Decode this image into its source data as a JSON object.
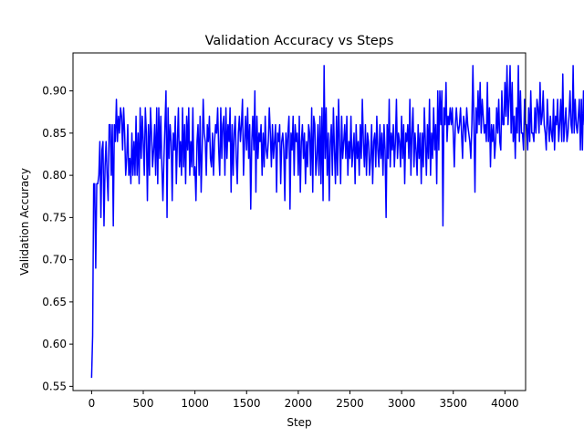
{
  "chart_data": {
    "type": "line",
    "title": "Validation Accuracy vs Steps",
    "xlabel": "Step",
    "ylabel": "Validation Accuracy",
    "xlim": [
      -180,
      4200
    ],
    "ylim": [
      0.545,
      0.945
    ],
    "xticks": [
      0,
      500,
      1000,
      1500,
      2000,
      2500,
      3000,
      3500,
      4000
    ],
    "yticks": [
      0.55,
      0.6,
      0.65,
      0.7,
      0.75,
      0.8,
      0.85,
      0.9
    ],
    "ytick_labels": [
      "0.55",
      "0.60",
      "0.65",
      "0.70",
      "0.75",
      "0.80",
      "0.85",
      "0.90"
    ],
    "grid": false,
    "color": "#0000ff",
    "x_start": 0,
    "x_step": 10,
    "series": [
      {
        "values": [
          0.56,
          0.61,
          0.79,
          0.79,
          0.69,
          0.79,
          0.79,
          0.8,
          0.84,
          0.75,
          0.83,
          0.84,
          0.74,
          0.81,
          0.84,
          0.8,
          0.77,
          0.86,
          0.86,
          0.8,
          0.86,
          0.74,
          0.86,
          0.84,
          0.89,
          0.84,
          0.87,
          0.85,
          0.88,
          0.87,
          0.83,
          0.88,
          0.85,
          0.8,
          0.82,
          0.86,
          0.8,
          0.82,
          0.79,
          0.85,
          0.8,
          0.84,
          0.8,
          0.87,
          0.8,
          0.85,
          0.79,
          0.88,
          0.82,
          0.87,
          0.84,
          0.8,
          0.88,
          0.85,
          0.77,
          0.86,
          0.8,
          0.88,
          0.85,
          0.81,
          0.83,
          0.86,
          0.8,
          0.88,
          0.79,
          0.88,
          0.82,
          0.87,
          0.81,
          0.77,
          0.82,
          0.86,
          0.9,
          0.75,
          0.88,
          0.82,
          0.86,
          0.84,
          0.77,
          0.85,
          0.83,
          0.87,
          0.79,
          0.84,
          0.88,
          0.81,
          0.84,
          0.8,
          0.88,
          0.81,
          0.86,
          0.79,
          0.87,
          0.83,
          0.88,
          0.8,
          0.84,
          0.81,
          0.88,
          0.8,
          0.81,
          0.77,
          0.84,
          0.86,
          0.8,
          0.87,
          0.78,
          0.83,
          0.89,
          0.85,
          0.84,
          0.8,
          0.86,
          0.84,
          0.87,
          0.82,
          0.81,
          0.85,
          0.8,
          0.84,
          0.86,
          0.85,
          0.88,
          0.83,
          0.8,
          0.88,
          0.82,
          0.86,
          0.87,
          0.8,
          0.88,
          0.82,
          0.86,
          0.84,
          0.88,
          0.78,
          0.86,
          0.8,
          0.85,
          0.87,
          0.82,
          0.79,
          0.85,
          0.87,
          0.84,
          0.86,
          0.89,
          0.8,
          0.84,
          0.87,
          0.83,
          0.88,
          0.82,
          0.86,
          0.76,
          0.84,
          0.87,
          0.83,
          0.9,
          0.78,
          0.87,
          0.82,
          0.85,
          0.84,
          0.86,
          0.8,
          0.85,
          0.81,
          0.87,
          0.83,
          0.82,
          0.84,
          0.88,
          0.85,
          0.81,
          0.86,
          0.82,
          0.84,
          0.86,
          0.78,
          0.85,
          0.84,
          0.86,
          0.79,
          0.84,
          0.85,
          0.83,
          0.77,
          0.85,
          0.82,
          0.85,
          0.87,
          0.76,
          0.85,
          0.83,
          0.87,
          0.8,
          0.86,
          0.84,
          0.85,
          0.8,
          0.87,
          0.78,
          0.84,
          0.86,
          0.82,
          0.85,
          0.79,
          0.84,
          0.81,
          0.86,
          0.85,
          0.8,
          0.88,
          0.78,
          0.87,
          0.86,
          0.8,
          0.82,
          0.86,
          0.8,
          0.87,
          0.79,
          0.88,
          0.77,
          0.93,
          0.82,
          0.88,
          0.8,
          0.85,
          0.77,
          0.84,
          0.86,
          0.8,
          0.88,
          0.83,
          0.79,
          0.87,
          0.8,
          0.89,
          0.84,
          0.79,
          0.87,
          0.82,
          0.84,
          0.86,
          0.82,
          0.87,
          0.8,
          0.84,
          0.82,
          0.87,
          0.81,
          0.83,
          0.85,
          0.79,
          0.86,
          0.82,
          0.84,
          0.8,
          0.86,
          0.82,
          0.89,
          0.84,
          0.81,
          0.86,
          0.8,
          0.85,
          0.84,
          0.8,
          0.82,
          0.86,
          0.79,
          0.84,
          0.85,
          0.81,
          0.87,
          0.83,
          0.81,
          0.86,
          0.82,
          0.85,
          0.8,
          0.86,
          0.83,
          0.75,
          0.86,
          0.82,
          0.89,
          0.81,
          0.85,
          0.83,
          0.86,
          0.81,
          0.84,
          0.89,
          0.82,
          0.85,
          0.84,
          0.81,
          0.87,
          0.82,
          0.86,
          0.79,
          0.85,
          0.84,
          0.86,
          0.82,
          0.89,
          0.8,
          0.85,
          0.88,
          0.81,
          0.85,
          0.83,
          0.8,
          0.86,
          0.82,
          0.85,
          0.79,
          0.85,
          0.81,
          0.88,
          0.84,
          0.8,
          0.86,
          0.82,
          0.89,
          0.8,
          0.85,
          0.82,
          0.88,
          0.83,
          0.86,
          0.79,
          0.9,
          0.83,
          0.9,
          0.86,
          0.9,
          0.74,
          0.88,
          0.86,
          0.91,
          0.84,
          0.87,
          0.86,
          0.88,
          0.86,
          0.88,
          0.85,
          0.81,
          0.86,
          0.88,
          0.86,
          0.85,
          0.86,
          0.88,
          0.85,
          0.82,
          0.87,
          0.86,
          0.84,
          0.88,
          0.86,
          0.85,
          0.84,
          0.82,
          0.86,
          0.93,
          0.86,
          0.78,
          0.88,
          0.85,
          0.9,
          0.86,
          0.91,
          0.85,
          0.89,
          0.87,
          0.85,
          0.86,
          0.84,
          0.91,
          0.84,
          0.88,
          0.81,
          0.86,
          0.84,
          0.86,
          0.82,
          0.84,
          0.88,
          0.85,
          0.89,
          0.84,
          0.83,
          0.9,
          0.86,
          0.86,
          0.91,
          0.87,
          0.93,
          0.86,
          0.89,
          0.93,
          0.85,
          0.91,
          0.84,
          0.87,
          0.82,
          0.88,
          0.85,
          0.93,
          0.84,
          0.9,
          0.85,
          0.85,
          0.83,
          0.89,
          0.86,
          0.86,
          0.83,
          0.88,
          0.84,
          0.9,
          0.85,
          0.85,
          0.84,
          0.88,
          0.85,
          0.89,
          0.88,
          0.85,
          0.91,
          0.86,
          0.87,
          0.9,
          0.86,
          0.85,
          0.83,
          0.89,
          0.86,
          0.84,
          0.87,
          0.85,
          0.84,
          0.89,
          0.83,
          0.87,
          0.86,
          0.89,
          0.84,
          0.86,
          0.89,
          0.84,
          0.92,
          0.84,
          0.86,
          0.88,
          0.84,
          0.85,
          0.87,
          0.9,
          0.86,
          0.85,
          0.93,
          0.85,
          0.89,
          0.86,
          0.85,
          0.87,
          0.89,
          0.83,
          0.89,
          0.83,
          0.9,
          0.86,
          0.88,
          0.92,
          0.85
        ]
      }
    ]
  }
}
